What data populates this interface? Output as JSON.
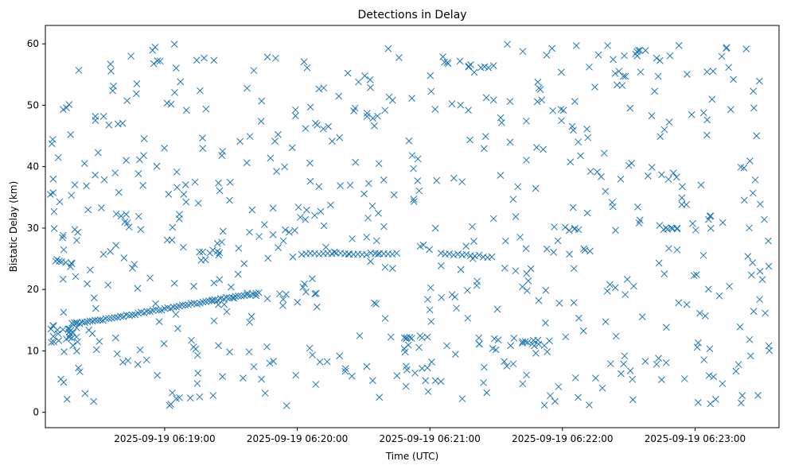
{
  "chart_data": {
    "type": "scatter",
    "title": "Detections in Delay",
    "xlabel": "Time (UTC)",
    "ylabel": "Bistatic Delay (km)",
    "marker": "x",
    "color": "#1f77b4",
    "grid": false,
    "xlim": [
      "2025-09-19 06:18:06",
      "2025-09-19 06:23:38"
    ],
    "ylim": [
      -2.5,
      63
    ],
    "xticks": [
      {
        "t": "2025-09-19 06:19:00",
        "label": "2025-09-19 06:19:00"
      },
      {
        "t": "2025-09-19 06:20:00",
        "label": "2025-09-19 06:20:00"
      },
      {
        "t": "2025-09-19 06:21:00",
        "label": "2025-09-19 06:21:00"
      },
      {
        "t": "2025-09-19 06:22:00",
        "label": "2025-09-19 06:22:00"
      },
      {
        "t": "2025-09-19 06:23:00",
        "label": "2025-09-19 06:23:00"
      }
    ],
    "yticks": [
      0,
      10,
      20,
      30,
      40,
      50,
      60
    ],
    "track_line": [
      [
        "2025-09-19 06:18:18",
        14.4
      ],
      [
        "2025-09-19 06:18:25",
        14.7
      ],
      [
        "2025-09-19 06:18:32",
        15.1
      ],
      [
        "2025-09-19 06:18:40",
        15.6
      ],
      [
        "2025-09-19 06:18:48",
        16.1
      ],
      [
        "2025-09-19 06:18:56",
        16.6
      ],
      [
        "2025-09-19 06:19:04",
        17.1
      ],
      [
        "2025-09-19 06:19:12",
        17.6
      ],
      [
        "2025-09-19 06:19:20",
        18.1
      ],
      [
        "2025-09-19 06:19:28",
        18.6
      ],
      [
        "2025-09-19 06:19:36",
        19.0
      ],
      [
        "2025-09-19 06:19:44",
        19.5
      ]
    ],
    "track_flat_a": [
      [
        "2025-09-19 06:20:02",
        25.8
      ],
      [
        "2025-09-19 06:20:45",
        25.8
      ]
    ],
    "track_flat_b": [
      [
        "2025-09-19 06:21:05",
        25.9
      ],
      [
        "2025-09-19 06:21:28",
        25.3
      ]
    ],
    "clusters": [
      {
        "t0": "2025-09-19 06:18:08",
        "t1": "2025-09-19 06:18:22",
        "y0": 11.3,
        "y1": 14.2,
        "n": 18
      },
      {
        "t0": "2025-09-19 06:18:10",
        "t1": "2025-09-19 06:18:20",
        "y0": 24.2,
        "y1": 24.9,
        "n": 6
      },
      {
        "t0": "2025-09-19 06:20:40",
        "t1": "2025-09-19 06:21:00",
        "y0": 11.9,
        "y1": 12.4,
        "n": 8
      },
      {
        "t0": "2025-09-19 06:21:22",
        "t1": "2025-09-19 06:21:50",
        "y0": 10.6,
        "y1": 12.2,
        "n": 14
      },
      {
        "t0": "2025-09-19 06:21:15",
        "t1": "2025-09-19 06:21:35",
        "y0": 56.0,
        "y1": 56.9,
        "n": 6
      },
      {
        "t0": "2025-09-19 06:19:15",
        "t1": "2025-09-19 06:19:25",
        "y0": 25.6,
        "y1": 26.2,
        "n": 6
      },
      {
        "t0": "2025-09-19 06:21:55",
        "t1": "2025-09-19 06:22:10",
        "y0": 29.5,
        "y1": 30.2,
        "n": 6
      },
      {
        "t0": "2025-09-19 06:22:40",
        "t1": "2025-09-19 06:22:55",
        "y0": 29.6,
        "y1": 30.1,
        "n": 6
      },
      {
        "t0": "2025-09-19 06:22:30",
        "t1": "2025-09-19 06:22:36",
        "y0": 58.0,
        "y1": 59.3,
        "n": 5
      }
    ],
    "background": {
      "count": 640,
      "t0": "2025-09-19 06:18:06",
      "t1": "2025-09-19 06:23:34",
      "y0": 1.0,
      "y1": 60.0
    }
  }
}
